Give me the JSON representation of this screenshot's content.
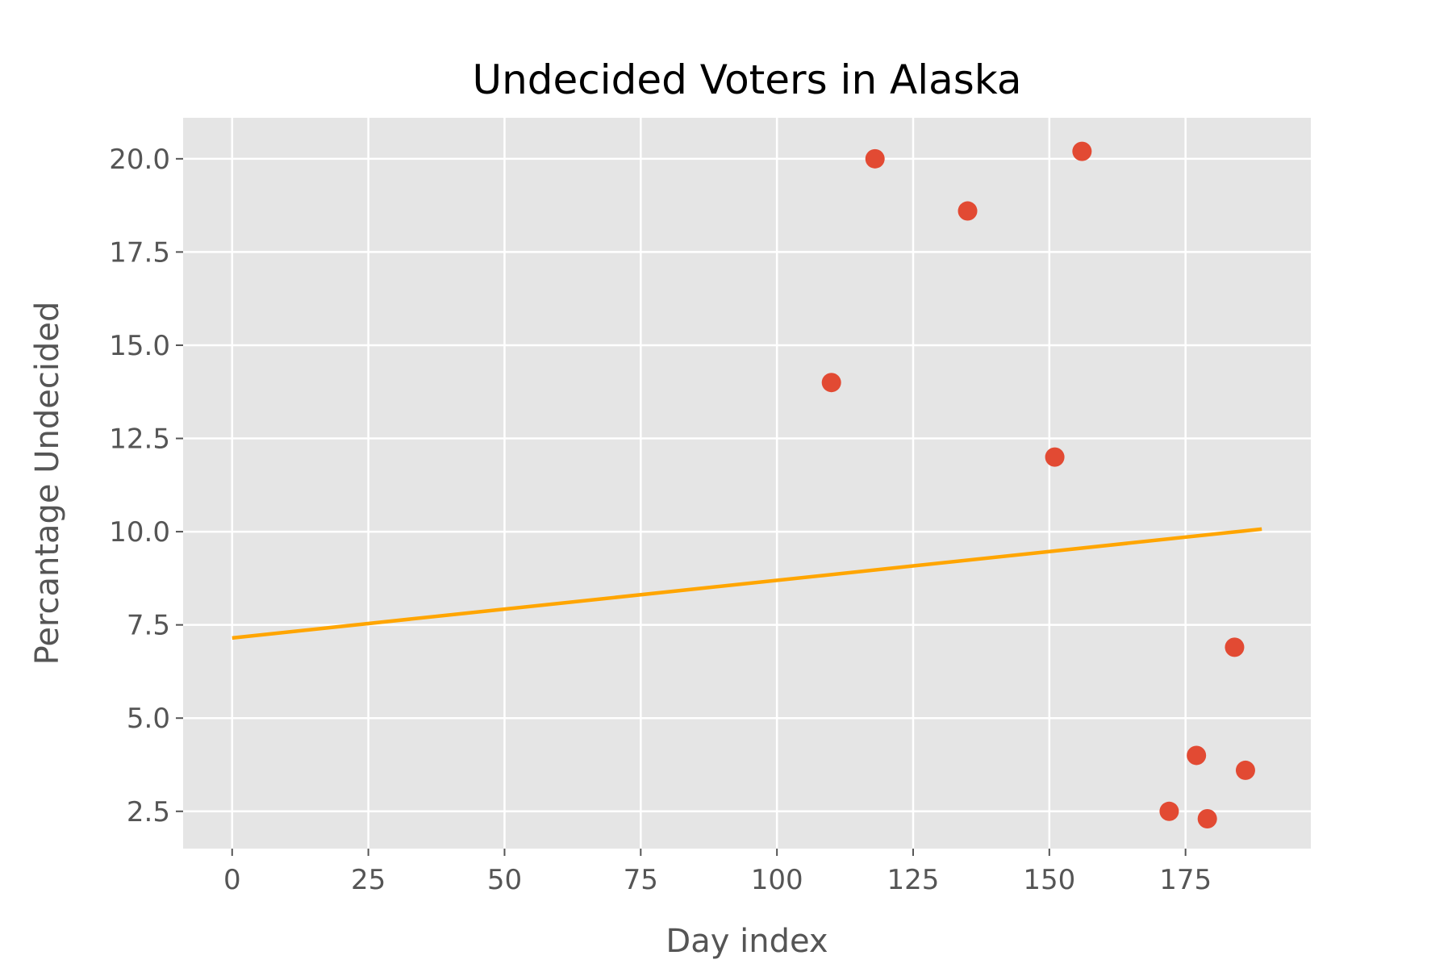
{
  "chart_data": {
    "type": "scatter",
    "title": "Undecided Voters in Alaska",
    "xlabel": "Day index",
    "ylabel": "Percantage Undecided",
    "xlim": [
      -9,
      198
    ],
    "ylim": [
      1.5,
      21.1
    ],
    "xticks": [
      0,
      25,
      50,
      75,
      100,
      125,
      150,
      175
    ],
    "xtick_labels": [
      "0",
      "25",
      "50",
      "75",
      "100",
      "125",
      "150",
      "175"
    ],
    "yticks": [
      2.5,
      5.0,
      7.5,
      10.0,
      12.5,
      15.0,
      17.5,
      20.0
    ],
    "ytick_labels": [
      "2.5",
      "5.0",
      "7.5",
      "10.0",
      "12.5",
      "15.0",
      "17.5",
      "20.0"
    ],
    "grid": true,
    "style": "ggplot",
    "colors": {
      "background": "#e5e5e5",
      "grid": "#ffffff",
      "points": "#e24a33",
      "trend": "#ffa500"
    },
    "series": [
      {
        "type": "scatter",
        "x": [
          110,
          118,
          135,
          151,
          156,
          172,
          177,
          179,
          184,
          186
        ],
        "y": [
          14.0,
          20.0,
          18.6,
          12.0,
          20.2,
          2.5,
          4.0,
          2.3,
          6.9,
          3.6
        ]
      },
      {
        "type": "line",
        "x": [
          0,
          189
        ],
        "y": [
          7.15,
          10.07
        ]
      }
    ]
  }
}
